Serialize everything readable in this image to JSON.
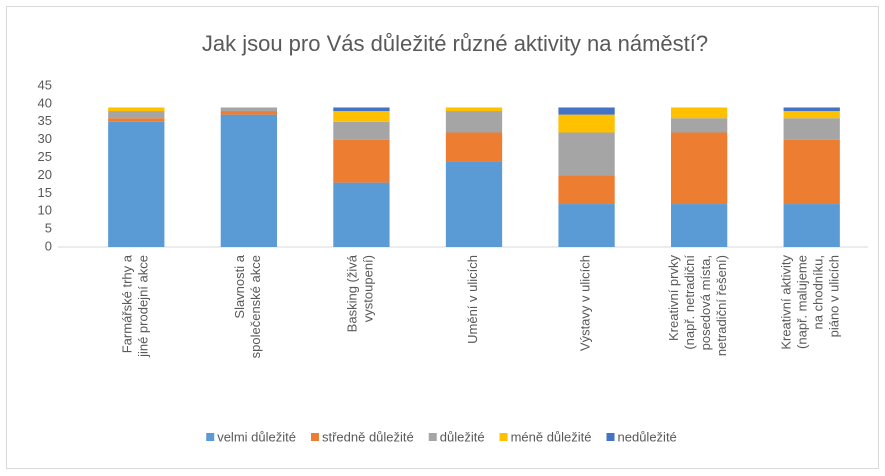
{
  "chart_data": {
    "type": "stacked_bar",
    "title": "Jak jsou pro Vás důležité různé aktivity na náměstí?",
    "categories": [
      "Farmářské trhy a\njiné prodejní akce",
      "Slavnosti a\nspolečenské akce",
      "Basking (živá\nvystoupení)",
      "Umění v ulicích",
      "Výstavy v ulicích",
      "Kreativní prvky\n(např. netradiční\nposedová místa,\nnetradiční řešení)",
      "Kreativní aktivity\n(např. malujeme\nna chodníku,\npiáno v ulicích"
    ],
    "series": [
      {
        "name": "velmi důležité",
        "color": "#5b9bd5",
        "values": [
          35,
          37,
          18,
          24,
          12,
          12,
          12
        ]
      },
      {
        "name": "středně důležité",
        "color": "#ed7d31",
        "values": [
          1,
          1,
          12,
          8,
          8,
          20,
          18
        ]
      },
      {
        "name": "důležité",
        "color": "#a5a5a5",
        "values": [
          2,
          1,
          5,
          6,
          12,
          4,
          6
        ]
      },
      {
        "name": "méně důležité",
        "color": "#ffc000",
        "values": [
          1,
          0,
          3,
          1,
          5,
          3,
          2
        ]
      },
      {
        "name": "nedůležité",
        "color": "#4472c4",
        "values": [
          0,
          0,
          1,
          0,
          2,
          0,
          1
        ]
      }
    ],
    "ylim": [
      0,
      45
    ],
    "yticks": [
      0,
      5,
      10,
      15,
      20,
      25,
      30,
      35,
      40,
      45
    ],
    "grid": false,
    "legend": "bottom"
  }
}
